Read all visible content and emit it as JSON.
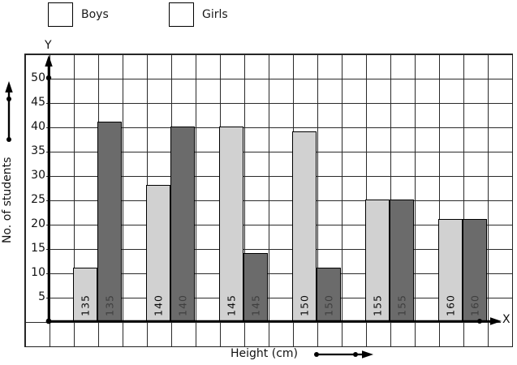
{
  "legend": {
    "boys": "Boys",
    "girls": "Girls",
    "boys_color": "#d1d1d1",
    "girls_color": "#6b6b6b"
  },
  "axes": {
    "y_title": "No. of students",
    "x_title": "Height (cm)",
    "y_letter": "Y",
    "x_letter": "X",
    "y_ticks": [
      5,
      10,
      15,
      20,
      25,
      30,
      35,
      40,
      45,
      50
    ]
  },
  "chart_data": {
    "type": "bar",
    "categories": [
      "135",
      "140",
      "145",
      "150",
      "155",
      "160"
    ],
    "series": [
      {
        "name": "Boys",
        "color": "#d1d1d1",
        "values": [
          11,
          28,
          40,
          39,
          25,
          21
        ]
      },
      {
        "name": "Girls",
        "color": "#6b6b6b",
        "values": [
          41,
          40,
          14,
          11,
          25,
          21
        ]
      }
    ],
    "title": "",
    "xlabel": "Height (cm)",
    "ylabel": "No. of students",
    "ylim": [
      0,
      55
    ],
    "ytick_step": 5,
    "grid": true,
    "legend_position": "top",
    "bar_labels": "category shown rotated inside bar bottom"
  }
}
